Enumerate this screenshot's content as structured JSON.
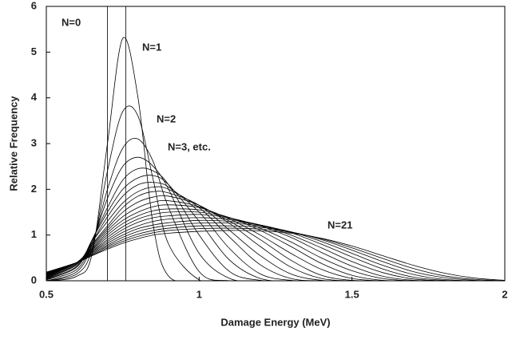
{
  "chart_data": {
    "type": "line",
    "xlabel": "Damage Energy (MeV)",
    "ylabel": "Relative Frequency",
    "xlim": [
      0.5,
      2
    ],
    "xticks": [
      0.5,
      1,
      1.5,
      2
    ],
    "ylim": [
      0,
      6
    ],
    "yticks": [
      0,
      1,
      2,
      3,
      4,
      5,
      6
    ],
    "grid": false,
    "color": "#000000",
    "annotations": [
      "N=0",
      "N=1",
      "N=2",
      "N=3, etc.",
      "N=21"
    ],
    "x": [
      0.5,
      0.6,
      0.65,
      0.7,
      0.75,
      0.8,
      0.85,
      0.9,
      1.0,
      1.1,
      1.2,
      1.3,
      1.4,
      1.5,
      1.6,
      1.7,
      1.8,
      1.9,
      2.0
    ],
    "series": [
      {
        "x": [
          0.7,
          0.7,
          0.76,
          0.76
        ],
        "values": [
          0,
          6.5,
          6.5,
          0
        ]
      },
      {
        "values": [
          0,
          0.1,
          0.6,
          3.0,
          5.3,
          4.0,
          1.2,
          0.1,
          0,
          0,
          0,
          0,
          0,
          0,
          0,
          0,
          0,
          0,
          0
        ]
      },
      {
        "values": [
          0,
          0.15,
          0.7,
          2.4,
          3.7,
          3.6,
          2.2,
          0.8,
          0.02,
          0,
          0,
          0,
          0,
          0,
          0,
          0,
          0,
          0,
          0
        ]
      },
      {
        "values": [
          0,
          0.2,
          0.8,
          2.0,
          2.9,
          3.1,
          2.6,
          1.6,
          0.2,
          0,
          0,
          0,
          0,
          0,
          0,
          0,
          0,
          0,
          0
        ]
      },
      {
        "values": [
          0.02,
          0.25,
          0.85,
          1.8,
          2.5,
          2.7,
          2.5,
          2.0,
          0.6,
          0.05,
          0,
          0,
          0,
          0,
          0,
          0,
          0,
          0,
          0
        ]
      },
      {
        "values": [
          0.03,
          0.3,
          0.9,
          1.6,
          2.2,
          2.45,
          2.4,
          2.1,
          1.0,
          0.2,
          0.01,
          0,
          0,
          0,
          0,
          0,
          0,
          0,
          0
        ]
      },
      {
        "values": [
          0.04,
          0.32,
          0.9,
          1.5,
          2.0,
          2.25,
          2.3,
          2.1,
          1.3,
          0.45,
          0.05,
          0,
          0,
          0,
          0,
          0,
          0,
          0,
          0
        ]
      },
      {
        "values": [
          0.05,
          0.35,
          0.85,
          1.4,
          1.85,
          2.1,
          2.15,
          2.05,
          1.5,
          0.7,
          0.15,
          0.01,
          0,
          0,
          0,
          0,
          0,
          0,
          0
        ]
      },
      {
        "values": [
          0.06,
          0.37,
          0.85,
          1.3,
          1.7,
          1.95,
          2.05,
          2.0,
          1.6,
          0.95,
          0.35,
          0.05,
          0,
          0,
          0,
          0,
          0,
          0,
          0
        ]
      },
      {
        "values": [
          0.07,
          0.38,
          0.8,
          1.2,
          1.6,
          1.85,
          1.95,
          1.92,
          1.65,
          1.1,
          0.55,
          0.15,
          0.01,
          0,
          0,
          0,
          0,
          0,
          0
        ]
      },
      {
        "values": [
          0.08,
          0.4,
          0.78,
          1.15,
          1.5,
          1.72,
          1.83,
          1.85,
          1.65,
          1.25,
          0.75,
          0.3,
          0.05,
          0,
          0,
          0,
          0,
          0,
          0
        ]
      },
      {
        "values": [
          0.09,
          0.4,
          0.75,
          1.1,
          1.4,
          1.6,
          1.72,
          1.75,
          1.62,
          1.3,
          0.9,
          0.45,
          0.12,
          0.01,
          0,
          0,
          0,
          0,
          0
        ]
      },
      {
        "values": [
          0.1,
          0.4,
          0.72,
          1.05,
          1.32,
          1.5,
          1.62,
          1.66,
          1.6,
          1.35,
          1.0,
          0.6,
          0.25,
          0.05,
          0,
          0,
          0,
          0,
          0
        ]
      },
      {
        "values": [
          0.11,
          0.4,
          0.7,
          1.0,
          1.25,
          1.42,
          1.53,
          1.57,
          1.55,
          1.38,
          1.1,
          0.75,
          0.38,
          0.12,
          0.01,
          0,
          0,
          0,
          0
        ]
      },
      {
        "values": [
          0.12,
          0.4,
          0.68,
          0.95,
          1.18,
          1.35,
          1.45,
          1.5,
          1.5,
          1.38,
          1.15,
          0.85,
          0.5,
          0.22,
          0.05,
          0,
          0,
          0,
          0
        ]
      },
      {
        "values": [
          0.13,
          0.4,
          0.66,
          0.9,
          1.12,
          1.28,
          1.38,
          1.42,
          1.45,
          1.37,
          1.2,
          0.95,
          0.62,
          0.32,
          0.1,
          0.01,
          0,
          0,
          0
        ]
      },
      {
        "values": [
          0.14,
          0.4,
          0.64,
          0.86,
          1.06,
          1.2,
          1.3,
          1.35,
          1.38,
          1.34,
          1.22,
          1.0,
          0.72,
          0.42,
          0.18,
          0.04,
          0,
          0,
          0
        ]
      },
      {
        "values": [
          0.15,
          0.4,
          0.62,
          0.82,
          1.0,
          1.14,
          1.22,
          1.27,
          1.32,
          1.3,
          1.22,
          1.05,
          0.8,
          0.52,
          0.26,
          0.08,
          0.01,
          0,
          0
        ]
      },
      {
        "values": [
          0.16,
          0.4,
          0.6,
          0.78,
          0.95,
          1.08,
          1.16,
          1.21,
          1.26,
          1.26,
          1.2,
          1.07,
          0.86,
          0.6,
          0.34,
          0.14,
          0.03,
          0,
          0
        ]
      },
      {
        "values": [
          0.17,
          0.4,
          0.58,
          0.75,
          0.9,
          1.02,
          1.1,
          1.15,
          1.2,
          1.2,
          1.17,
          1.07,
          0.9,
          0.67,
          0.42,
          0.2,
          0.07,
          0.01,
          0
        ]
      },
      {
        "values": [
          0.18,
          0.4,
          0.56,
          0.72,
          0.86,
          0.97,
          1.05,
          1.1,
          1.14,
          1.15,
          1.13,
          1.06,
          0.92,
          0.72,
          0.49,
          0.27,
          0.11,
          0.03,
          0
        ]
      },
      {
        "values": [
          0.19,
          0.4,
          0.55,
          0.69,
          0.82,
          0.92,
          1.0,
          1.04,
          1.08,
          1.1,
          1.09,
          1.04,
          0.93,
          0.76,
          0.55,
          0.34,
          0.17,
          0.06,
          0.01
        ]
      }
    ]
  }
}
